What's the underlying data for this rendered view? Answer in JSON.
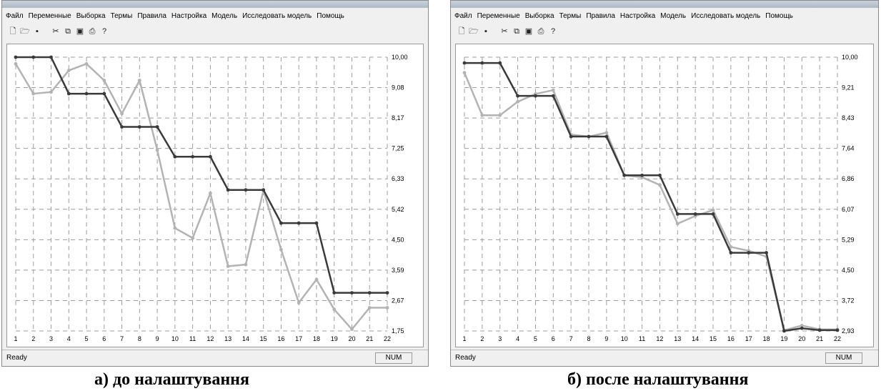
{
  "panels": [
    {
      "id": "a",
      "menu": [
        "Файл",
        "Переменные",
        "Выборка",
        "Термы",
        "Правила",
        "Настройка",
        "Модель",
        "Исследовать модель",
        "Помощь"
      ],
      "toolbar_icons": [
        "new-file-icon",
        "open-folder-icon",
        "save-icon",
        "cut-icon",
        "copy-icon",
        "paste-icon",
        "print-icon",
        "help-icon"
      ],
      "status": "Ready",
      "num_indicator": "NUM",
      "caption": "а) до налаштування",
      "colors": {
        "dark_series": "#3a3a3a",
        "light_series": "#b3b3b3"
      },
      "chart_data": {
        "type": "line",
        "x": [
          1,
          2,
          3,
          4,
          5,
          6,
          7,
          8,
          9,
          10,
          11,
          12,
          13,
          14,
          15,
          16,
          17,
          18,
          19,
          20,
          21,
          22
        ],
        "x_tick_labels": [
          "1",
          "2",
          "3",
          "4",
          "5",
          "6",
          "7",
          "8",
          "9",
          "10",
          "11",
          "12",
          "13",
          "14",
          "15",
          "16",
          "17",
          "18",
          "19",
          "20",
          "21",
          "22"
        ],
        "y_tick_labels": [
          "10,00",
          "9,08",
          "8,17",
          "7,25",
          "6,33",
          "5,42",
          "4,50",
          "3,59",
          "2,67",
          "1,75"
        ],
        "ylim": [
          1.75,
          10.0
        ],
        "y_axis_position": "right",
        "grid": true,
        "series": [
          {
            "values": [
              10.0,
              10.0,
              10.0,
              8.9,
              8.9,
              8.9,
              7.9,
              7.9,
              7.9,
              7.0,
              7.0,
              7.0,
              6.0,
              6.0,
              6.0,
              5.0,
              5.0,
              5.0,
              2.9,
              2.9,
              2.9,
              2.9
            ]
          },
          {
            "values": [
              9.8,
              8.9,
              8.95,
              9.6,
              9.8,
              9.3,
              8.3,
              9.3,
              7.2,
              4.85,
              4.55,
              5.9,
              3.7,
              3.75,
              5.98,
              4.2,
              2.6,
              3.3,
              2.4,
              1.8,
              2.45,
              2.45
            ]
          }
        ]
      }
    },
    {
      "id": "b",
      "menu": [
        "Файл",
        "Переменные",
        "Выборка",
        "Термы",
        "Правила",
        "Настройка",
        "Модель",
        "Исследовать модель",
        "Помощь"
      ],
      "toolbar_icons": [
        "new-file-icon",
        "open-folder-icon",
        "save-icon",
        "cut-icon",
        "copy-icon",
        "paste-icon",
        "print-icon",
        "help-icon"
      ],
      "status": "Ready",
      "num_indicator": "NUM",
      "caption": "б) после налаштування",
      "colors": {
        "dark_series": "#3a3a3a",
        "light_series": "#b3b3b3"
      },
      "chart_data": {
        "type": "line",
        "x": [
          1,
          2,
          3,
          4,
          5,
          6,
          7,
          8,
          9,
          10,
          11,
          12,
          13,
          14,
          15,
          16,
          17,
          18,
          19,
          20,
          21,
          22
        ],
        "x_tick_labels": [
          "1",
          "2",
          "3",
          "4",
          "5",
          "6",
          "7",
          "8",
          "9",
          "10",
          "11",
          "12",
          "13",
          "14",
          "15",
          "16",
          "17",
          "18",
          "19",
          "20",
          "21",
          "22"
        ],
        "y_tick_labels": [
          "10,00",
          "9,21",
          "8,43",
          "7,64",
          "6,86",
          "6,07",
          "5,29",
          "4,50",
          "3,72",
          "2,93"
        ],
        "ylim": [
          2.93,
          10.0
        ],
        "y_axis_position": "right",
        "grid": true,
        "series": [
          {
            "values": [
              9.85,
              9.85,
              9.85,
              9.0,
              9.0,
              9.0,
              7.95,
              7.95,
              7.95,
              6.95,
              6.95,
              6.95,
              5.95,
              5.95,
              5.95,
              4.95,
              4.95,
              4.95,
              2.93,
              3.0,
              2.95,
              2.95
            ]
          },
          {
            "values": [
              9.6,
              8.5,
              8.5,
              8.85,
              9.05,
              9.15,
              8.0,
              7.95,
              8.05,
              6.95,
              6.9,
              6.7,
              5.7,
              5.9,
              6.05,
              5.1,
              5.0,
              4.85,
              2.95,
              3.07,
              2.97,
              2.97
            ]
          }
        ]
      }
    }
  ]
}
